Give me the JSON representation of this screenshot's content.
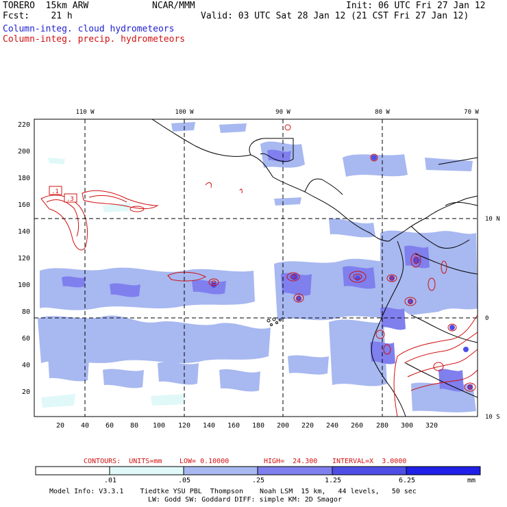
{
  "header": {
    "model": "TORERO  15km ARW",
    "org": "NCAR/MMM",
    "init": "Init: 06 UTC Fri 27 Jan 12",
    "fcst": "Fcst:    21 h",
    "valid": "Valid: 03 UTC Sat 28 Jan 12 (21 CST Fri 27 Jan 12)",
    "field1": "Column-integ. cloud hydrometeors",
    "field2": "Column-integ. precip. hydrometeors",
    "field1_color": "#1f1fd0",
    "field2_color": "#d01010"
  },
  "map": {
    "lon_labels": [
      "110 W",
      "100 W",
      "90 W",
      "80 W",
      "70 W"
    ],
    "lat_labels": [
      "10 N",
      "0",
      "10 S"
    ],
    "y_ticks": [
      "220",
      "200",
      "180",
      "160",
      "140",
      "120",
      "100",
      "80",
      "60",
      "40",
      "20"
    ],
    "x_ticks": [
      "20",
      "40",
      "60",
      "80",
      "100",
      "120",
      "140",
      "160",
      "180",
      "200",
      "220",
      "240",
      "260",
      "280",
      "300",
      "320"
    ],
    "contour_labels": [
      ".1",
      ".3"
    ]
  },
  "contours_info": {
    "units": "CONTOURS:  UNITS=mm",
    "low": "LOW= 0.10000",
    "high": "HIGH=  24.300",
    "interval": "INTERVAL=X  3.0000"
  },
  "colorbar": {
    "levels": [
      ".01",
      ".05",
      ".25",
      "1.25",
      "6.25"
    ],
    "unit": "mm",
    "colors": [
      "#ffffff",
      "#e0f8f8",
      "#a8b8f0",
      "#7f7fee",
      "#4e4ee6",
      "#2020e8"
    ]
  },
  "footer": {
    "line1": "Model Info: V3.3.1    Tiedtke YSU PBL  Thompson    Noah LSM  15 km,   44 levels,   50 sec",
    "line2": "LW: Godd SW: Goddard DIFF: simple KM: 2D Smagor"
  }
}
